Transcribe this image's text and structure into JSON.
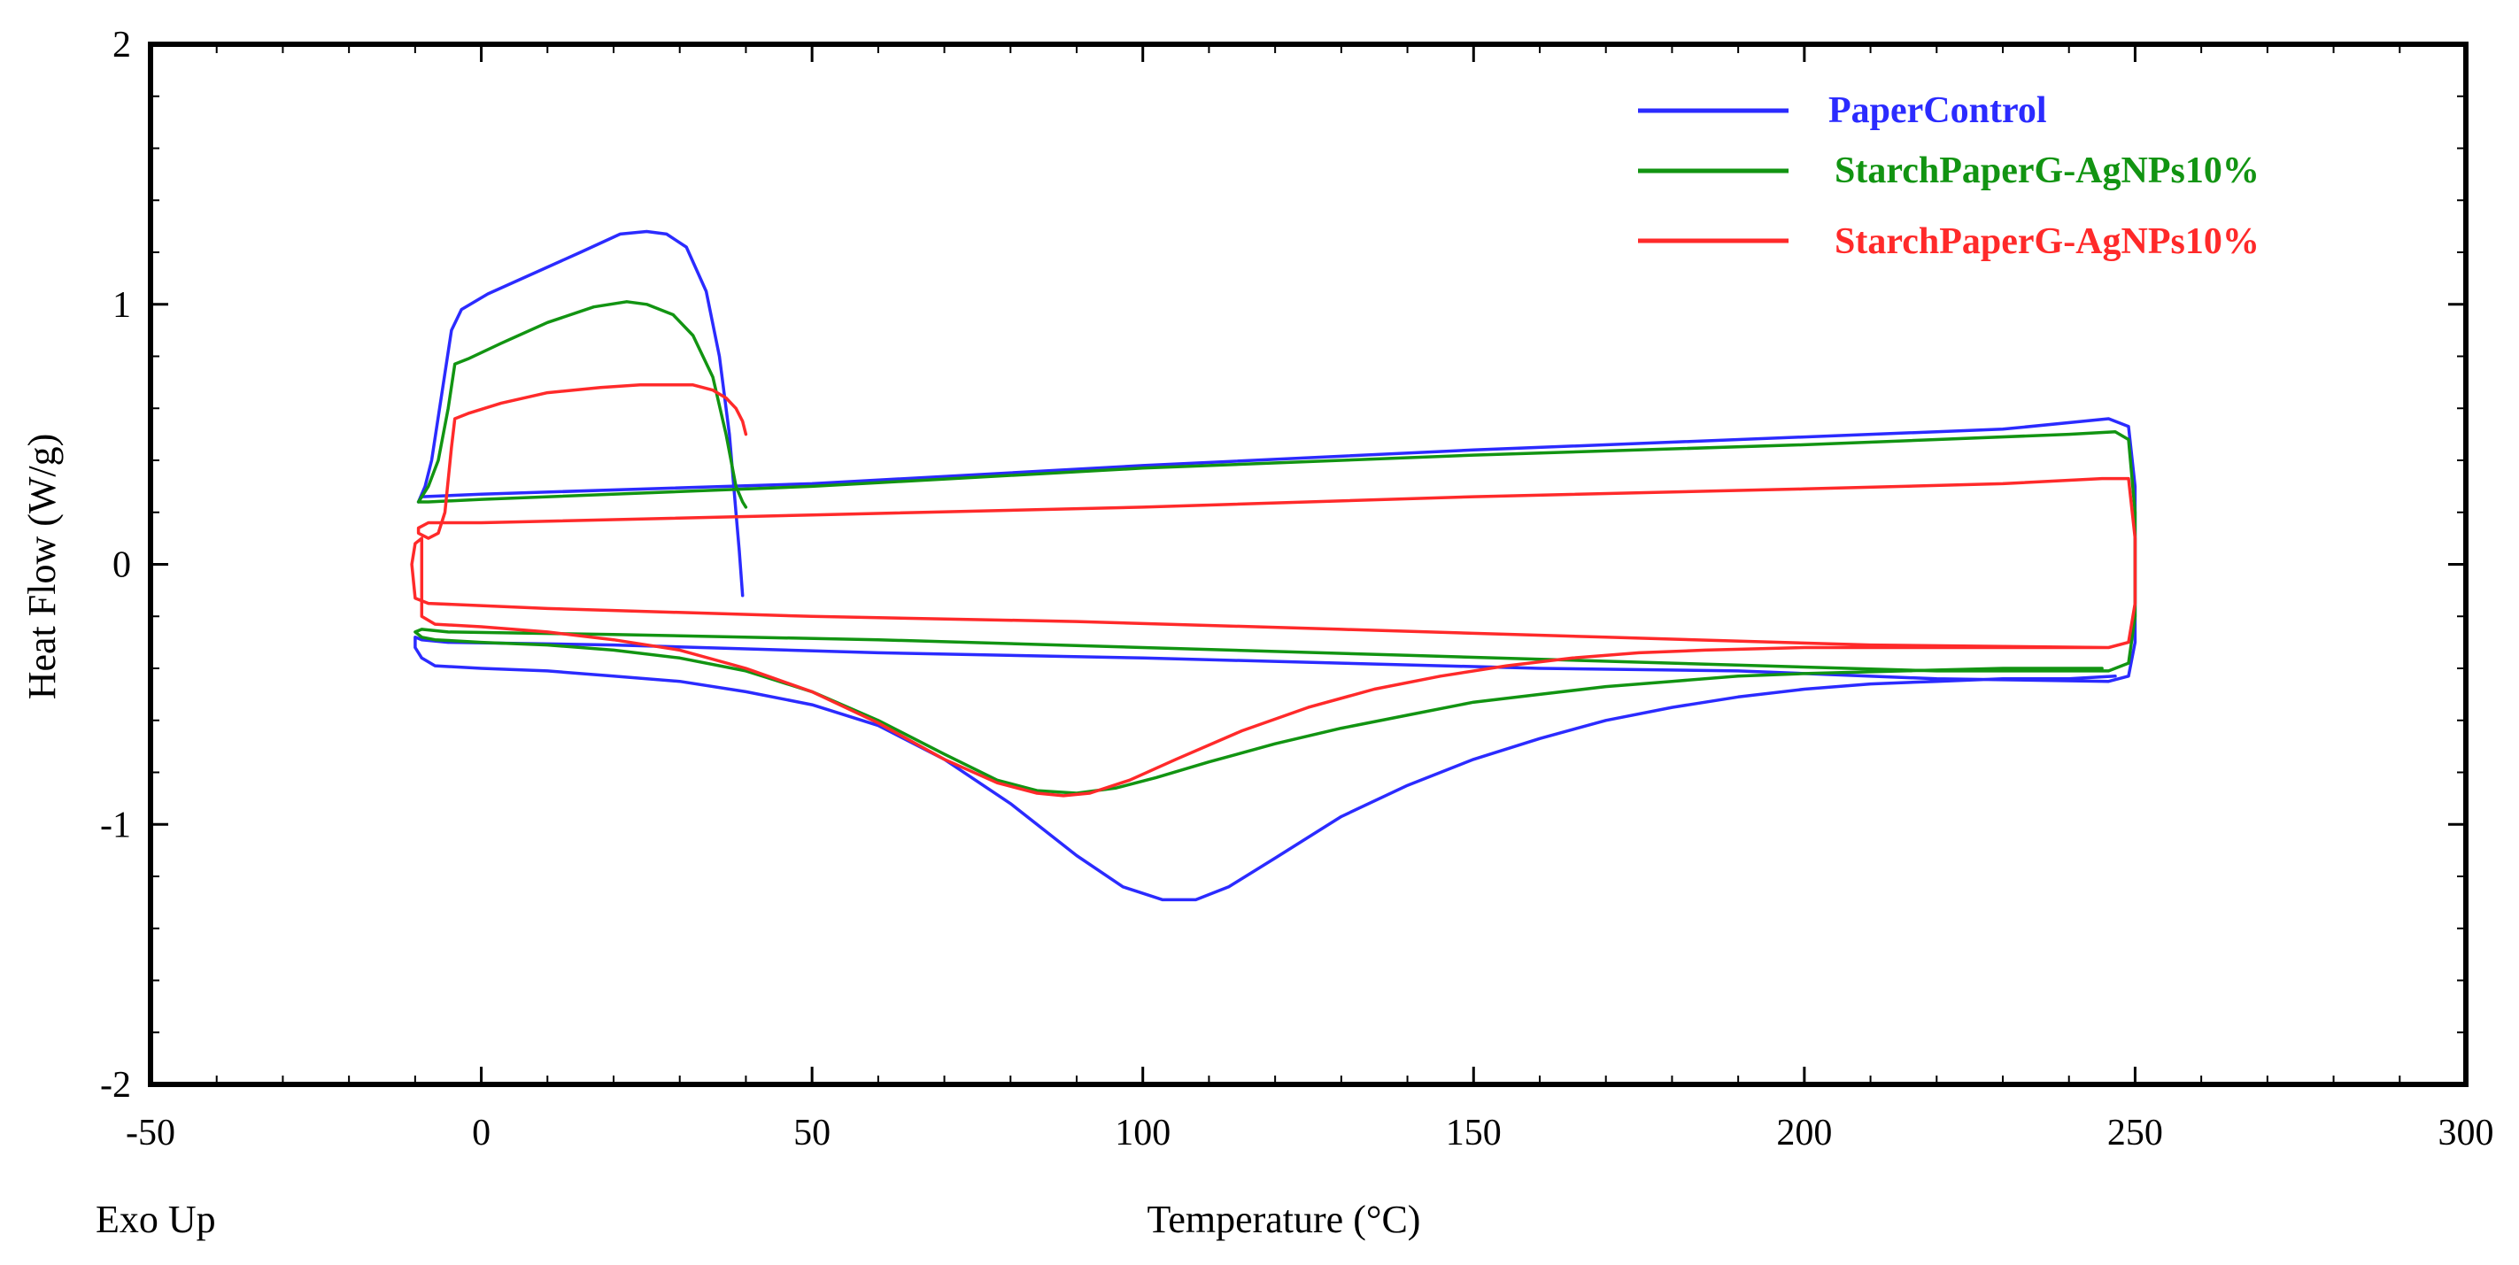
{
  "chart_data": {
    "type": "line",
    "title": "",
    "xlabel": "Temperature (°C)",
    "ylabel": "Heat Flow (W/g)",
    "corner_note": "Exo Up",
    "xlim": [
      -50,
      300
    ],
    "ylim": [
      -2,
      2
    ],
    "xticks": [
      -50,
      0,
      50,
      100,
      150,
      200,
      250,
      300
    ],
    "yticks": [
      -2,
      -1,
      0,
      1,
      2
    ],
    "xtick_labels": [
      "-50",
      "0",
      "50",
      "100",
      "150",
      "200",
      "250",
      "300"
    ],
    "ytick_labels": [
      "-2",
      "-1",
      "0",
      "1",
      "2"
    ],
    "grid": false,
    "legend_position": "top-right",
    "series": [
      {
        "name": "PaperControl",
        "color": "#2b2bff",
        "points": [
          [
            39.5,
            -0.12
          ],
          [
            39,
            0.05
          ],
          [
            38.5,
            0.2
          ],
          [
            37.5,
            0.5
          ],
          [
            36,
            0.8
          ],
          [
            34,
            1.05
          ],
          [
            31,
            1.22
          ],
          [
            28,
            1.27
          ],
          [
            25,
            1.28
          ],
          [
            21,
            1.27
          ],
          [
            15,
            1.2
          ],
          [
            8,
            1.12
          ],
          [
            1,
            1.04
          ],
          [
            -3,
            0.98
          ],
          [
            -4.5,
            0.9
          ],
          [
            -6,
            0.65
          ],
          [
            -7.5,
            0.4
          ],
          [
            -8.5,
            0.3
          ],
          [
            -9.5,
            0.24
          ],
          [
            -9,
            0.26
          ],
          [
            0,
            0.27
          ],
          [
            50,
            0.31
          ],
          [
            100,
            0.38
          ],
          [
            150,
            0.44
          ],
          [
            200,
            0.49
          ],
          [
            230,
            0.52
          ],
          [
            246,
            0.56
          ],
          [
            249,
            0.53
          ],
          [
            250,
            0.3
          ],
          [
            250,
            -0.1
          ],
          [
            250,
            -0.3
          ],
          [
            249,
            -0.43
          ],
          [
            246,
            -0.45
          ],
          [
            220,
            -0.44
          ],
          [
            190,
            -0.41
          ],
          [
            160,
            -0.4
          ],
          [
            130,
            -0.38
          ],
          [
            100,
            -0.36
          ],
          [
            60,
            -0.34
          ],
          [
            20,
            -0.31
          ],
          [
            -5,
            -0.3
          ],
          [
            -9,
            -0.29
          ],
          [
            -10,
            -0.28
          ],
          [
            -10,
            -0.32
          ],
          [
            -9,
            -0.36
          ],
          [
            -7,
            -0.39
          ],
          [
            0,
            -0.4
          ],
          [
            10,
            -0.41
          ],
          [
            20,
            -0.43
          ],
          [
            30,
            -0.45
          ],
          [
            40,
            -0.49
          ],
          [
            50,
            -0.54
          ],
          [
            60,
            -0.62
          ],
          [
            70,
            -0.75
          ],
          [
            80,
            -0.92
          ],
          [
            90,
            -1.12
          ],
          [
            97,
            -1.24
          ],
          [
            103,
            -1.29
          ],
          [
            108,
            -1.29
          ],
          [
            113,
            -1.24
          ],
          [
            120,
            -1.13
          ],
          [
            130,
            -0.97
          ],
          [
            140,
            -0.85
          ],
          [
            150,
            -0.75
          ],
          [
            160,
            -0.67
          ],
          [
            170,
            -0.6
          ],
          [
            180,
            -0.55
          ],
          [
            190,
            -0.51
          ],
          [
            200,
            -0.48
          ],
          [
            210,
            -0.46
          ],
          [
            220,
            -0.45
          ],
          [
            230,
            -0.44
          ],
          [
            240,
            -0.44
          ],
          [
            247,
            -0.43
          ]
        ]
      },
      {
        "name": "StarchPaperG-AgNPs10%",
        "color": "#129412",
        "points": [
          [
            40,
            0.22
          ],
          [
            39.5,
            0.24
          ],
          [
            38.5,
            0.3
          ],
          [
            37,
            0.5
          ],
          [
            35,
            0.72
          ],
          [
            32,
            0.88
          ],
          [
            29,
            0.96
          ],
          [
            25,
            1.0
          ],
          [
            22,
            1.01
          ],
          [
            17,
            0.99
          ],
          [
            10,
            0.93
          ],
          [
            3,
            0.85
          ],
          [
            -2,
            0.79
          ],
          [
            -4,
            0.77
          ],
          [
            -5,
            0.6
          ],
          [
            -6.5,
            0.4
          ],
          [
            -8,
            0.3
          ],
          [
            -9.5,
            0.24
          ],
          [
            -8,
            0.24
          ],
          [
            0,
            0.25
          ],
          [
            50,
            0.3
          ],
          [
            100,
            0.37
          ],
          [
            150,
            0.42
          ],
          [
            200,
            0.46
          ],
          [
            240,
            0.5
          ],
          [
            247,
            0.51
          ],
          [
            249,
            0.48
          ],
          [
            250,
            0.2
          ],
          [
            250,
            -0.2
          ],
          [
            249,
            -0.38
          ],
          [
            246,
            -0.41
          ],
          [
            220,
            -0.41
          ],
          [
            180,
            -0.38
          ],
          [
            140,
            -0.35
          ],
          [
            100,
            -0.32
          ],
          [
            60,
            -0.29
          ],
          [
            20,
            -0.27
          ],
          [
            -5,
            -0.26
          ],
          [
            -9,
            -0.25
          ],
          [
            -10,
            -0.26
          ],
          [
            -9,
            -0.28
          ],
          [
            -7,
            -0.29
          ],
          [
            0,
            -0.3
          ],
          [
            10,
            -0.31
          ],
          [
            20,
            -0.33
          ],
          [
            30,
            -0.36
          ],
          [
            40,
            -0.41
          ],
          [
            50,
            -0.49
          ],
          [
            60,
            -0.6
          ],
          [
            70,
            -0.73
          ],
          [
            78,
            -0.83
          ],
          [
            84,
            -0.87
          ],
          [
            90,
            -0.88
          ],
          [
            96,
            -0.86
          ],
          [
            102,
            -0.82
          ],
          [
            110,
            -0.76
          ],
          [
            120,
            -0.69
          ],
          [
            130,
            -0.63
          ],
          [
            140,
            -0.58
          ],
          [
            150,
            -0.53
          ],
          [
            160,
            -0.5
          ],
          [
            170,
            -0.47
          ],
          [
            180,
            -0.45
          ],
          [
            190,
            -0.43
          ],
          [
            200,
            -0.42
          ],
          [
            215,
            -0.41
          ],
          [
            230,
            -0.4
          ],
          [
            245,
            -0.4
          ]
        ]
      },
      {
        "name": "StarchPaperG-AgNPs10%",
        "color": "#ff2a2a",
        "points": [
          [
            40,
            0.5
          ],
          [
            39.5,
            0.55
          ],
          [
            38.5,
            0.6
          ],
          [
            37,
            0.64
          ],
          [
            35,
            0.67
          ],
          [
            32,
            0.69
          ],
          [
            28,
            0.69
          ],
          [
            24,
            0.69
          ],
          [
            18,
            0.68
          ],
          [
            10,
            0.66
          ],
          [
            3,
            0.62
          ],
          [
            -2,
            0.58
          ],
          [
            -4,
            0.56
          ],
          [
            -4.5,
            0.45
          ],
          [
            -5.5,
            0.2
          ],
          [
            -6.5,
            0.12
          ],
          [
            -8,
            0.1
          ],
          [
            -9.5,
            0.12
          ],
          [
            -9.5,
            0.14
          ],
          [
            -8,
            0.16
          ],
          [
            0,
            0.16
          ],
          [
            50,
            0.19
          ],
          [
            100,
            0.22
          ],
          [
            150,
            0.26
          ],
          [
            200,
            0.29
          ],
          [
            230,
            0.31
          ],
          [
            245,
            0.33
          ],
          [
            249,
            0.33
          ],
          [
            250,
            0.1
          ],
          [
            250,
            -0.15
          ],
          [
            249,
            -0.3
          ],
          [
            246,
            -0.32
          ],
          [
            210,
            -0.31
          ],
          [
            170,
            -0.28
          ],
          [
            130,
            -0.25
          ],
          [
            90,
            -0.22
          ],
          [
            50,
            -0.2
          ],
          [
            10,
            -0.17
          ],
          [
            -8,
            -0.15
          ],
          [
            -10,
            -0.13
          ],
          [
            -10.5,
            0
          ],
          [
            -10,
            0.08
          ],
          [
            -9,
            0.1
          ],
          [
            -9,
            -0.1
          ],
          [
            -9,
            -0.2
          ],
          [
            -7,
            -0.23
          ],
          [
            0,
            -0.24
          ],
          [
            10,
            -0.26
          ],
          [
            20,
            -0.29
          ],
          [
            30,
            -0.33
          ],
          [
            40,
            -0.4
          ],
          [
            50,
            -0.49
          ],
          [
            60,
            -0.61
          ],
          [
            70,
            -0.75
          ],
          [
            78,
            -0.84
          ],
          [
            84,
            -0.88
          ],
          [
            88,
            -0.89
          ],
          [
            92,
            -0.88
          ],
          [
            98,
            -0.83
          ],
          [
            105,
            -0.75
          ],
          [
            115,
            -0.64
          ],
          [
            125,
            -0.55
          ],
          [
            135,
            -0.48
          ],
          [
            145,
            -0.43
          ],
          [
            155,
            -0.39
          ],
          [
            165,
            -0.36
          ],
          [
            175,
            -0.34
          ],
          [
            185,
            -0.33
          ],
          [
            200,
            -0.32
          ],
          [
            215,
            -0.32
          ],
          [
            230,
            -0.32
          ],
          [
            245,
            -0.32
          ]
        ]
      }
    ]
  }
}
